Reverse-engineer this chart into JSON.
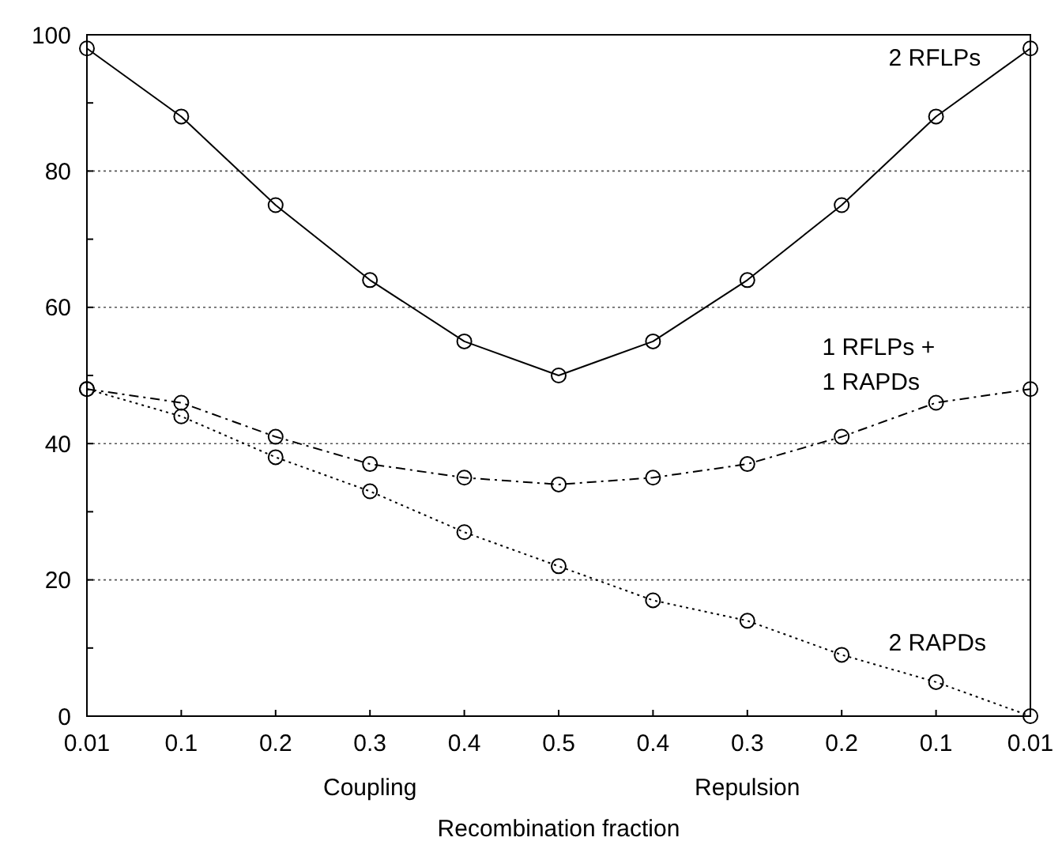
{
  "chart_data": {
    "type": "line",
    "xlabel": "Recombination fraction",
    "categories": [
      "0.01",
      "0.1",
      "0.2",
      "0.3",
      "0.4",
      "0.5",
      "0.4",
      "0.3",
      "0.2",
      "0.1",
      "0.01"
    ],
    "series": [
      {
        "name": "2 RFLPs",
        "color": "#000000",
        "line_style": "solid",
        "values": [
          98,
          88,
          75,
          64,
          55,
          50,
          55,
          64,
          75,
          88,
          98
        ]
      },
      {
        "name": "1 RFLPs + 1 RAPDs",
        "color": "#000000",
        "line_style": "dashed",
        "values": [
          48,
          46,
          41,
          37,
          35,
          34,
          35,
          37,
          41,
          46,
          48
        ]
      },
      {
        "name": "2 RAPDs",
        "color": "#000000",
        "line_style": "dotted",
        "values": [
          48,
          44,
          38,
          33,
          27,
          22,
          17,
          14,
          9,
          5,
          0
        ]
      }
    ],
    "ylim": [
      0,
      100
    ],
    "yticks": [
      0,
      {
        "value": 10,
        "label": null
      },
      20,
      {
        "value": 30,
        "label": null
      },
      40,
      {
        "value": 50,
        "label": null
      },
      60,
      {
        "value": 70,
        "label": null
      },
      80,
      {
        "value": 90,
        "label": null
      },
      100
    ],
    "grid": "y",
    "marker": "circle",
    "annotations": [
      "Coupling",
      "Repulsion"
    ]
  }
}
